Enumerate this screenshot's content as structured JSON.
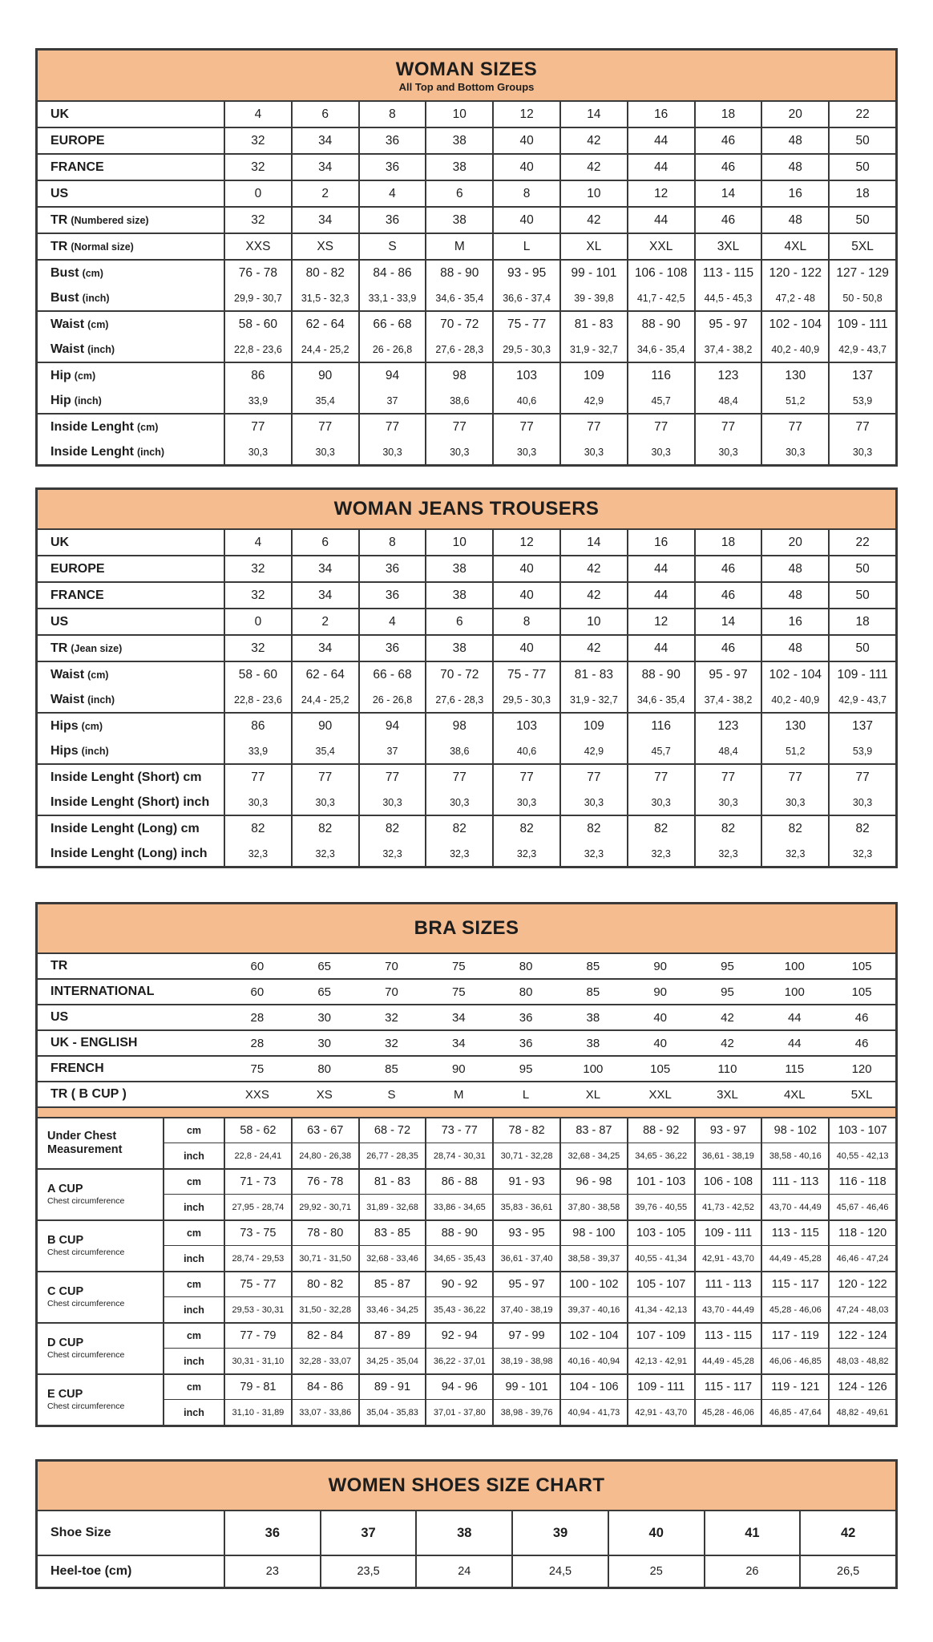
{
  "page": {
    "accent_color": "#f5bd8f",
    "border_color": "#3a3a3a",
    "background_color": "#ffffff"
  },
  "tables": [
    {
      "id": "woman-sizes",
      "type": "standard",
      "title": "WOMAN SIZES",
      "subtitle": "All Top and Bottom Groups",
      "groups": [
        [
          {
            "label": "UK",
            "values": [
              "4",
              "6",
              "8",
              "10",
              "12",
              "14",
              "16",
              "18",
              "20",
              "22"
            ]
          }
        ],
        [
          {
            "label": "EUROPE",
            "values": [
              "32",
              "34",
              "36",
              "38",
              "40",
              "42",
              "44",
              "46",
              "48",
              "50"
            ]
          }
        ],
        [
          {
            "label": "FRANCE",
            "values": [
              "32",
              "34",
              "36",
              "38",
              "40",
              "42",
              "44",
              "46",
              "48",
              "50"
            ]
          }
        ],
        [
          {
            "label": "US",
            "values": [
              "0",
              "2",
              "4",
              "6",
              "8",
              "10",
              "12",
              "14",
              "16",
              "18"
            ]
          }
        ],
        [
          {
            "label": "TR (Numbered size)",
            "values": [
              "32",
              "34",
              "36",
              "38",
              "40",
              "42",
              "44",
              "46",
              "48",
              "50"
            ]
          }
        ],
        [
          {
            "label": "TR (Normal size)",
            "values": [
              "XXS",
              "XS",
              "S",
              "M",
              "L",
              "XL",
              "XXL",
              "3XL",
              "4XL",
              "5XL"
            ]
          }
        ],
        [
          {
            "label": "Bust (cm)",
            "values": [
              "76 - 78",
              "80 - 82",
              "84 - 86",
              "88 - 90",
              "93 - 95",
              "99 - 101",
              "106 - 108",
              "113 - 115",
              "120 - 122",
              "127 - 129"
            ]
          },
          {
            "label": "Bust (inch)",
            "values": [
              "29,9 - 30,7",
              "31,5 - 32,3",
              "33,1 - 33,9",
              "34,6 - 35,4",
              "36,6 - 37,4",
              "39 - 39,8",
              "41,7 - 42,5",
              "44,5 - 45,3",
              "47,2 - 48",
              "50 - 50,8"
            ]
          }
        ],
        [
          {
            "label": "Waist (cm)",
            "values": [
              "58 - 60",
              "62 - 64",
              "66 - 68",
              "70 - 72",
              "75 - 77",
              "81 - 83",
              "88 - 90",
              "95 - 97",
              "102 - 104",
              "109 - 111"
            ]
          },
          {
            "label": "Waist (inch)",
            "values": [
              "22,8 - 23,6",
              "24,4 - 25,2",
              "26 - 26,8",
              "27,6 - 28,3",
              "29,5 - 30,3",
              "31,9 - 32,7",
              "34,6 - 35,4",
              "37,4 - 38,2",
              "40,2 - 40,9",
              "42,9 - 43,7"
            ]
          }
        ],
        [
          {
            "label": "Hip (cm)",
            "values": [
              "86",
              "90",
              "94",
              "98",
              "103",
              "109",
              "116",
              "123",
              "130",
              "137"
            ]
          },
          {
            "label": "Hip (inch)",
            "values": [
              "33,9",
              "35,4",
              "37",
              "38,6",
              "40,6",
              "42,9",
              "45,7",
              "48,4",
              "51,2",
              "53,9"
            ]
          }
        ],
        [
          {
            "label": "Inside Lenght (cm)",
            "values": [
              "77",
              "77",
              "77",
              "77",
              "77",
              "77",
              "77",
              "77",
              "77",
              "77"
            ]
          },
          {
            "label": "Inside Lenght (inch)",
            "values": [
              "30,3",
              "30,3",
              "30,3",
              "30,3",
              "30,3",
              "30,3",
              "30,3",
              "30,3",
              "30,3",
              "30,3"
            ]
          }
        ]
      ]
    },
    {
      "id": "woman-jeans-trousers",
      "type": "standard",
      "title": "WOMAN JEANS TROUSERS",
      "groups": [
        [
          {
            "label": "UK",
            "values": [
              "4",
              "6",
              "8",
              "10",
              "12",
              "14",
              "16",
              "18",
              "20",
              "22"
            ]
          }
        ],
        [
          {
            "label": "EUROPE",
            "values": [
              "32",
              "34",
              "36",
              "38",
              "40",
              "42",
              "44",
              "46",
              "48",
              "50"
            ]
          }
        ],
        [
          {
            "label": "FRANCE",
            "values": [
              "32",
              "34",
              "36",
              "38",
              "40",
              "42",
              "44",
              "46",
              "48",
              "50"
            ]
          }
        ],
        [
          {
            "label": "US",
            "values": [
              "0",
              "2",
              "4",
              "6",
              "8",
              "10",
              "12",
              "14",
              "16",
              "18"
            ]
          }
        ],
        [
          {
            "label": "TR (Jean size)",
            "values": [
              "32",
              "34",
              "36",
              "38",
              "40",
              "42",
              "44",
              "46",
              "48",
              "50"
            ]
          }
        ],
        [
          {
            "label": "Waist (cm)",
            "values": [
              "58 - 60",
              "62 - 64",
              "66 - 68",
              "70 - 72",
              "75 - 77",
              "81 - 83",
              "88 - 90",
              "95 - 97",
              "102 - 104",
              "109 - 111"
            ]
          },
          {
            "label": "Waist (inch)",
            "values": [
              "22,8 - 23,6",
              "24,4 - 25,2",
              "26 - 26,8",
              "27,6 - 28,3",
              "29,5 - 30,3",
              "31,9 - 32,7",
              "34,6 - 35,4",
              "37,4 - 38,2",
              "40,2 - 40,9",
              "42,9 - 43,7"
            ]
          }
        ],
        [
          {
            "label": "Hips (cm)",
            "values": [
              "86",
              "90",
              "94",
              "98",
              "103",
              "109",
              "116",
              "123",
              "130",
              "137"
            ]
          },
          {
            "label": "Hips (inch)",
            "values": [
              "33,9",
              "35,4",
              "37",
              "38,6",
              "40,6",
              "42,9",
              "45,7",
              "48,4",
              "51,2",
              "53,9"
            ]
          }
        ],
        [
          {
            "label": "Inside Lenght (Short) cm",
            "values": [
              "77",
              "77",
              "77",
              "77",
              "77",
              "77",
              "77",
              "77",
              "77",
              "77"
            ]
          },
          {
            "label": "Inside Lenght (Short) inch",
            "values": [
              "30,3",
              "30,3",
              "30,3",
              "30,3",
              "30,3",
              "30,3",
              "30,3",
              "30,3",
              "30,3",
              "30,3"
            ]
          }
        ],
        [
          {
            "label": "Inside Lenght (Long) cm",
            "values": [
              "82",
              "82",
              "82",
              "82",
              "82",
              "82",
              "82",
              "82",
              "82",
              "82"
            ]
          },
          {
            "label": "Inside Lenght (Long) inch",
            "values": [
              "32,3",
              "32,3",
              "32,3",
              "32,3",
              "32,3",
              "32,3",
              "32,3",
              "32,3",
              "32,3",
              "32,3"
            ]
          }
        ]
      ]
    },
    {
      "id": "bra-sizes",
      "type": "bra",
      "title": "BRA SIZES",
      "top_rows": [
        {
          "label": "TR",
          "values": [
            "60",
            "65",
            "70",
            "75",
            "80",
            "85",
            "90",
            "95",
            "100",
            "105"
          ]
        },
        {
          "label": "INTERNATIONAL",
          "values": [
            "60",
            "65",
            "70",
            "75",
            "80",
            "85",
            "90",
            "95",
            "100",
            "105"
          ]
        },
        {
          "label": "US",
          "values": [
            "28",
            "30",
            "32",
            "34",
            "36",
            "38",
            "40",
            "42",
            "44",
            "46"
          ]
        },
        {
          "label": "UK - ENGLISH",
          "values": [
            "28",
            "30",
            "32",
            "34",
            "36",
            "38",
            "40",
            "42",
            "44",
            "46"
          ]
        },
        {
          "label": "FRENCH",
          "values": [
            "75",
            "80",
            "85",
            "90",
            "95",
            "100",
            "105",
            "110",
            "115",
            "120"
          ]
        },
        {
          "label": "TR ( B CUP )",
          "values": [
            "XXS",
            "XS",
            "S",
            "M",
            "L",
            "XL",
            "XXL",
            "3XL",
            "4XL",
            "5XL"
          ]
        }
      ],
      "unit_labels": {
        "cm": "cm",
        "inch": "inch"
      },
      "cup_groups": [
        {
          "label": "Under Chest Measurement",
          "sublabel": "",
          "cm": [
            "58 - 62",
            "63 - 67",
            "68 - 72",
            "73 - 77",
            "78 - 82",
            "83 - 87",
            "88 - 92",
            "93 - 97",
            "98 - 102",
            "103 - 107"
          ],
          "inch": [
            "22,8 - 24,41",
            "24,80 - 26,38",
            "26,77 - 28,35",
            "28,74 - 30,31",
            "30,71 - 32,28",
            "32,68 - 34,25",
            "34,65 - 36,22",
            "36,61 - 38,19",
            "38,58 - 40,16",
            "40,55 - 42,13"
          ]
        },
        {
          "label": "A CUP",
          "sublabel": "Chest circumference",
          "cm": [
            "71 - 73",
            "76 - 78",
            "81 - 83",
            "86 - 88",
            "91 - 93",
            "96 - 98",
            "101 - 103",
            "106 - 108",
            "111 - 113",
            "116 - 118"
          ],
          "inch": [
            "27,95 - 28,74",
            "29,92 - 30,71",
            "31,89 - 32,68",
            "33,86 - 34,65",
            "35,83 - 36,61",
            "37,80 - 38,58",
            "39,76 - 40,55",
            "41,73 - 42,52",
            "43,70 - 44,49",
            "45,67 - 46,46"
          ]
        },
        {
          "label": "B CUP",
          "sublabel": "Chest circumference",
          "cm": [
            "73 - 75",
            "78 - 80",
            "83 - 85",
            "88 - 90",
            "93 - 95",
            "98 - 100",
            "103 - 105",
            "109 - 111",
            "113 - 115",
            "118 - 120"
          ],
          "inch": [
            "28,74 - 29,53",
            "30,71 - 31,50",
            "32,68 - 33,46",
            "34,65 - 35,43",
            "36,61 - 37,40",
            "38,58 - 39,37",
            "40,55 - 41,34",
            "42,91 - 43,70",
            "44,49 - 45,28",
            "46,46 - 47,24"
          ]
        },
        {
          "label": "C CUP",
          "sublabel": "Chest circumference",
          "cm": [
            "75 - 77",
            "80 - 82",
            "85 - 87",
            "90 - 92",
            "95 - 97",
            "100 - 102",
            "105 - 107",
            "111 - 113",
            "115 - 117",
            "120 - 122"
          ],
          "inch": [
            "29,53 - 30,31",
            "31,50 - 32,28",
            "33,46 - 34,25",
            "35,43 - 36,22",
            "37,40 - 38,19",
            "39,37 - 40,16",
            "41,34 - 42,13",
            "43,70 - 44,49",
            "45,28 - 46,06",
            "47,24 - 48,03"
          ]
        },
        {
          "label": "D CUP",
          "sublabel": "Chest circumference",
          "cm": [
            "77 - 79",
            "82 - 84",
            "87 - 89",
            "92 - 94",
            "97 - 99",
            "102 - 104",
            "107 - 109",
            "113 - 115",
            "117 - 119",
            "122 - 124"
          ],
          "inch": [
            "30,31 - 31,10",
            "32,28 - 33,07",
            "34,25 - 35,04",
            "36,22 - 37,01",
            "38,19 - 38,98",
            "40,16 - 40,94",
            "42,13 - 42,91",
            "44,49 - 45,28",
            "46,06 - 46,85",
            "48,03 - 48,82"
          ]
        },
        {
          "label": "E CUP",
          "sublabel": "Chest circumference",
          "cm": [
            "79 - 81",
            "84 - 86",
            "89 - 91",
            "94 - 96",
            "99 - 101",
            "104 - 106",
            "109 - 111",
            "115 - 117",
            "119 - 121",
            "124 - 126"
          ],
          "inch": [
            "31,10 - 31,89",
            "33,07 - 33,86",
            "35,04 - 35,83",
            "37,01 - 37,80",
            "38,98 - 39,76",
            "40,94 - 41,73",
            "42,91 - 43,70",
            "45,28 - 46,06",
            "46,85 - 47,64",
            "48,82 - 49,61"
          ]
        }
      ]
    },
    {
      "id": "women-shoes",
      "type": "shoes",
      "title": "WOMEN SHOES SIZE CHART",
      "rows": [
        {
          "label": "Shoe Size",
          "values": [
            "36",
            "37",
            "38",
            "39",
            "40",
            "41",
            "42"
          ]
        },
        {
          "label": "Heel-toe (cm)",
          "values": [
            "23",
            "23,5",
            "24",
            "24,5",
            "25",
            "26",
            "26,5"
          ]
        }
      ]
    }
  ]
}
